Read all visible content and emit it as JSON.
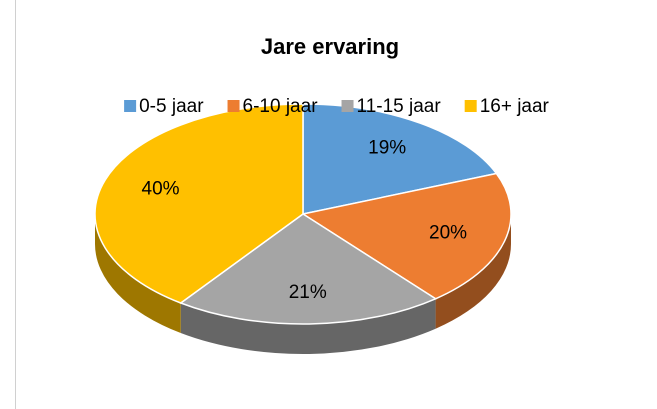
{
  "chart_data": {
    "type": "pie",
    "title": "Jare ervaring",
    "categories": [
      "0-5 jaar",
      "6-10 jaar",
      "11-15 jaar",
      "16+ jaar"
    ],
    "values": [
      19,
      20,
      21,
      40
    ],
    "value_labels": [
      "19%",
      "20%",
      "21%",
      "40%"
    ],
    "colors": [
      "#5b9bd5",
      "#ed7d31",
      "#a5a5a5",
      "#ffc000"
    ],
    "legend": "top"
  }
}
